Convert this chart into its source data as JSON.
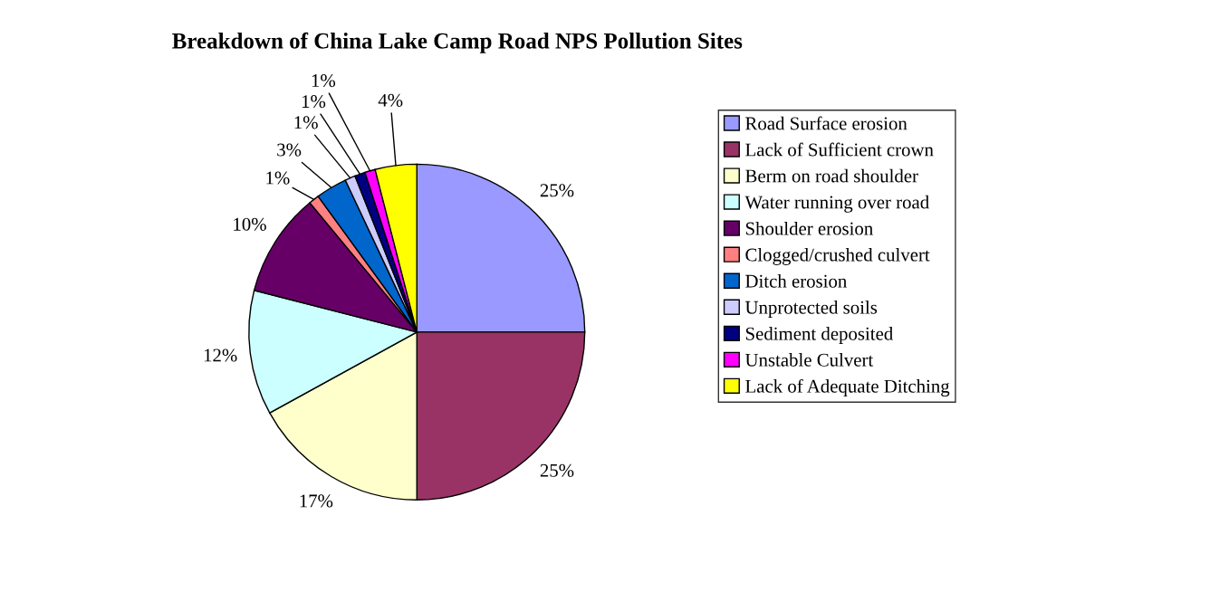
{
  "chart_data": {
    "type": "pie",
    "title": "Breakdown of China Lake Camp Road NPS Pollution Sites",
    "categories": [
      "Road Surface erosion",
      "Lack of Sufficient crown",
      "Berm on road shoulder",
      "Water running over road",
      "Shoulder erosion",
      "Clogged/crushed culvert",
      "Ditch erosion",
      "Unprotected soils",
      "Sediment deposited",
      "Unstable Culvert",
      "Lack of Adequate Ditching"
    ],
    "values": [
      25,
      25,
      17,
      12,
      10,
      1,
      3,
      1,
      1,
      1,
      4
    ],
    "value_labels": [
      "25%",
      "25%",
      "17%",
      "12%",
      "10%",
      "1%",
      "3%",
      "1%",
      "1%",
      "1%",
      "4%"
    ],
    "colors": [
      "#9999ff",
      "#993366",
      "#ffffcc",
      "#ccffff",
      "#660066",
      "#ff8080",
      "#0066cc",
      "#ccccff",
      "#000080",
      "#ff00ff",
      "#ffff00"
    ],
    "legend": "right"
  }
}
